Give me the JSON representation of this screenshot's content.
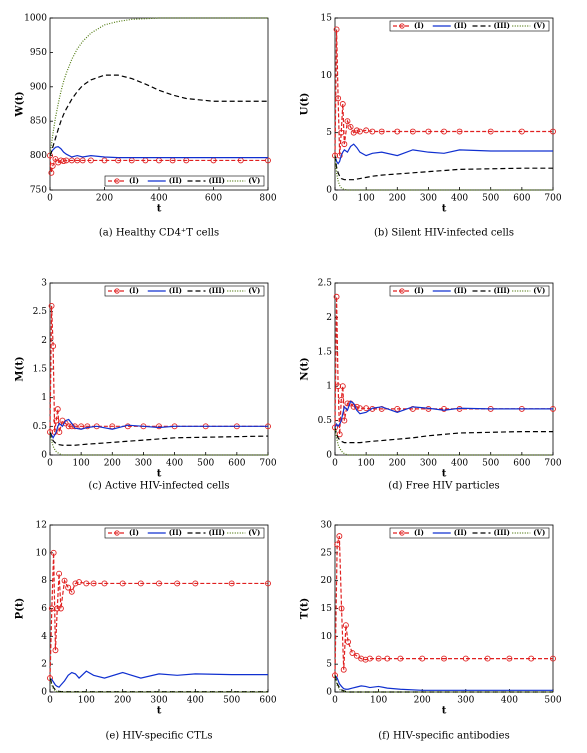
{
  "chart_data": [
    {
      "type": "line",
      "caption": "(a)  Healthy CD4⁺T cells",
      "xlabel": "t",
      "ylabel": "W(t)",
      "x": [
        0,
        5,
        10,
        20,
        30,
        40,
        50,
        60,
        80,
        100,
        120,
        150,
        200,
        250,
        300,
        350,
        400,
        450,
        500,
        600,
        700,
        800
      ],
      "xlim": [
        0,
        800
      ],
      "xticks": [
        0,
        200,
        400,
        600,
        800
      ],
      "ylim": [
        750,
        1000
      ],
      "yticks": [
        750,
        800,
        850,
        900,
        950,
        1000
      ],
      "legend": "lower",
      "series": [
        {
          "name": "(I)",
          "color": "#e02020",
          "dash": "4,2",
          "marker": "o",
          "values": [
            800,
            775,
            785,
            795,
            790,
            793,
            792,
            793,
            793,
            793,
            793,
            793,
            793,
            793,
            793,
            793,
            793,
            793,
            793,
            793,
            793,
            793
          ]
        },
        {
          "name": "(II)",
          "color": "#1030d0",
          "dash": "none",
          "values": [
            800,
            805,
            808,
            812,
            813,
            810,
            805,
            802,
            798,
            800,
            798,
            800,
            798,
            797,
            797,
            797,
            797,
            797,
            797,
            797,
            797,
            797
          ]
        },
        {
          "name": "(III)",
          "color": "#000000",
          "dash": "5,3",
          "values": [
            800,
            805,
            812,
            825,
            838,
            850,
            860,
            868,
            882,
            893,
            902,
            910,
            917,
            917,
            912,
            904,
            895,
            888,
            883,
            879,
            879,
            879
          ]
        },
        {
          "name": "(V)",
          "color": "#507a10",
          "dash": "1,1.5",
          "values": [
            800,
            815,
            830,
            855,
            875,
            893,
            908,
            920,
            940,
            955,
            966,
            978,
            990,
            995,
            998,
            999,
            1000,
            1000,
            1000,
            1000,
            1000,
            1000
          ]
        }
      ]
    },
    {
      "type": "line",
      "caption": "(b)  Silent HIV-infected cells",
      "xlabel": "t",
      "ylabel": "U(t)",
      "x": [
        0,
        5,
        10,
        15,
        20,
        25,
        30,
        40,
        50,
        60,
        70,
        80,
        100,
        120,
        150,
        200,
        250,
        300,
        350,
        400,
        500,
        600,
        700
      ],
      "xlim": [
        0,
        700
      ],
      "xticks": [
        0,
        100,
        200,
        300,
        400,
        500,
        600,
        700
      ],
      "ylim": [
        0,
        15
      ],
      "yticks": [
        0,
        5,
        10,
        15
      ],
      "legend": "upper",
      "series": [
        {
          "name": "(I)",
          "color": "#e02020",
          "dash": "4,2",
          "marker": "o",
          "values": [
            3,
            14,
            8,
            3,
            5,
            7.5,
            4,
            6,
            5.5,
            5,
            5.2,
            5.1,
            5.2,
            5.1,
            5.1,
            5.1,
            5.1,
            5.1,
            5.1,
            5.1,
            5.1,
            5.1,
            5.1
          ]
        },
        {
          "name": "(II)",
          "color": "#1030d0",
          "dash": "none",
          "values": [
            3,
            2.5,
            2.3,
            2.5,
            3,
            3.3,
            3.5,
            3.3,
            3.8,
            4,
            3.7,
            3.3,
            3,
            3.2,
            3.3,
            3,
            3.5,
            3.3,
            3.2,
            3.5,
            3.4,
            3.4,
            3.4
          ]
        },
        {
          "name": "(III)",
          "color": "#000000",
          "dash": "5,3",
          "values": [
            3,
            2,
            1.5,
            1.2,
            1,
            0.95,
            0.9,
            0.9,
            0.9,
            0.9,
            0.95,
            1,
            1.1,
            1.2,
            1.3,
            1.4,
            1.5,
            1.6,
            1.7,
            1.8,
            1.85,
            1.9,
            1.9
          ]
        },
        {
          "name": "(V)",
          "color": "#507a10",
          "dash": "1,1.5",
          "values": [
            3,
            1.5,
            0.8,
            0.4,
            0.2,
            0.1,
            0.05,
            0,
            0,
            0,
            0,
            0,
            0,
            0,
            0,
            0,
            0,
            0,
            0,
            0,
            0,
            0,
            0
          ]
        }
      ]
    },
    {
      "type": "line",
      "caption": "(c)  Active HIV-infected cells",
      "xlabel": "t",
      "ylabel": "M(t)",
      "x": [
        0,
        5,
        10,
        15,
        20,
        25,
        30,
        40,
        50,
        60,
        70,
        80,
        100,
        120,
        150,
        200,
        250,
        300,
        350,
        400,
        500,
        600,
        700
      ],
      "xlim": [
        0,
        700
      ],
      "xticks": [
        0,
        100,
        200,
        300,
        400,
        500,
        600,
        700
      ],
      "ylim": [
        0,
        3
      ],
      "yticks": [
        0,
        0.5,
        1,
        1.5,
        2,
        2.5,
        3
      ],
      "legend": "upper",
      "series": [
        {
          "name": "(I)",
          "color": "#e02020",
          "dash": "4,2",
          "marker": "o",
          "values": [
            0.4,
            2.6,
            1.9,
            0.4,
            0.6,
            0.8,
            0.4,
            0.6,
            0.55,
            0.5,
            0.5,
            0.5,
            0.5,
            0.5,
            0.5,
            0.5,
            0.5,
            0.5,
            0.5,
            0.5,
            0.5,
            0.5,
            0.5
          ]
        },
        {
          "name": "(II)",
          "color": "#1030d0",
          "dash": "none",
          "values": [
            0.4,
            0.35,
            0.3,
            0.35,
            0.4,
            0.5,
            0.55,
            0.5,
            0.6,
            0.62,
            0.55,
            0.47,
            0.45,
            0.48,
            0.5,
            0.45,
            0.52,
            0.5,
            0.48,
            0.5,
            0.5,
            0.5,
            0.5
          ]
        },
        {
          "name": "(III)",
          "color": "#000000",
          "dash": "5,3",
          "values": [
            0.4,
            0.3,
            0.25,
            0.22,
            0.2,
            0.19,
            0.18,
            0.17,
            0.17,
            0.17,
            0.17,
            0.17,
            0.18,
            0.19,
            0.2,
            0.22,
            0.24,
            0.26,
            0.28,
            0.3,
            0.31,
            0.32,
            0.33
          ]
        },
        {
          "name": "(V)",
          "color": "#507a10",
          "dash": "1,1.5",
          "values": [
            0.4,
            0.25,
            0.15,
            0.1,
            0.06,
            0.04,
            0.02,
            0,
            0,
            0,
            0,
            0,
            0,
            0,
            0,
            0,
            0,
            0,
            0,
            0,
            0,
            0,
            0
          ]
        }
      ]
    },
    {
      "type": "line",
      "caption": "(d)  Free HIV particles",
      "xlabel": "t",
      "ylabel": "N(t)",
      "x": [
        0,
        5,
        10,
        15,
        20,
        25,
        30,
        40,
        50,
        60,
        70,
        80,
        100,
        120,
        150,
        200,
        250,
        300,
        350,
        400,
        500,
        600,
        700
      ],
      "xlim": [
        0,
        700
      ],
      "xticks": [
        0,
        100,
        200,
        300,
        400,
        500,
        600,
        700
      ],
      "ylim": [
        0,
        2.5
      ],
      "yticks": [
        0,
        0.5,
        1,
        1.5,
        2,
        2.5
      ],
      "legend": "upper",
      "series": [
        {
          "name": "(I)",
          "color": "#e02020",
          "dash": "4,2",
          "marker": "o",
          "values": [
            0.4,
            2.3,
            1,
            0.3,
            0.8,
            1,
            0.5,
            0.75,
            0.75,
            0.7,
            0.7,
            0.68,
            0.68,
            0.67,
            0.67,
            0.67,
            0.67,
            0.67,
            0.67,
            0.67,
            0.67,
            0.67,
            0.67
          ]
        },
        {
          "name": "(II)",
          "color": "#1030d0",
          "dash": "none",
          "values": [
            0.4,
            0.45,
            0.42,
            0.45,
            0.5,
            0.6,
            0.7,
            0.65,
            0.78,
            0.75,
            0.65,
            0.6,
            0.62,
            0.68,
            0.7,
            0.62,
            0.7,
            0.68,
            0.65,
            0.68,
            0.67,
            0.67,
            0.67
          ]
        },
        {
          "name": "(III)",
          "color": "#000000",
          "dash": "5,3",
          "values": [
            0.4,
            0.3,
            0.25,
            0.22,
            0.2,
            0.19,
            0.18,
            0.18,
            0.18,
            0.18,
            0.18,
            0.18,
            0.19,
            0.2,
            0.21,
            0.23,
            0.25,
            0.28,
            0.3,
            0.32,
            0.33,
            0.34,
            0.34
          ]
        },
        {
          "name": "(V)",
          "color": "#507a10",
          "dash": "1,1.5",
          "values": [
            0.4,
            0.25,
            0.15,
            0.1,
            0.06,
            0.04,
            0.02,
            0,
            0,
            0,
            0,
            0,
            0,
            0,
            0,
            0,
            0,
            0,
            0,
            0,
            0,
            0,
            0
          ]
        }
      ]
    },
    {
      "type": "line",
      "caption": "(e)  HIV-specific CTLs",
      "xlabel": "t",
      "ylabel": "P(t)",
      "x": [
        0,
        5,
        10,
        15,
        20,
        25,
        30,
        40,
        50,
        60,
        70,
        80,
        100,
        120,
        150,
        200,
        250,
        300,
        350,
        400,
        500,
        600
      ],
      "xlim": [
        0,
        600
      ],
      "xticks": [
        0,
        100,
        200,
        300,
        400,
        500,
        600
      ],
      "ylim": [
        0,
        12
      ],
      "yticks": [
        0,
        2,
        4,
        6,
        8,
        10,
        12
      ],
      "legend": "upper",
      "series": [
        {
          "name": "(I)",
          "color": "#e02020",
          "dash": "4,2",
          "marker": "o",
          "values": [
            1,
            6,
            10,
            3,
            6,
            8.5,
            6,
            8,
            7.5,
            7.2,
            7.8,
            7.9,
            7.8,
            7.8,
            7.8,
            7.8,
            7.8,
            7.8,
            7.8,
            7.8,
            7.8,
            7.8
          ]
        },
        {
          "name": "(II)",
          "color": "#1030d0",
          "dash": "none",
          "values": [
            1,
            0.9,
            0.7,
            0.5,
            0.4,
            0.35,
            0.5,
            0.8,
            1.2,
            1.4,
            1.3,
            1,
            1.5,
            1.2,
            1,
            1.4,
            1,
            1.3,
            1.2,
            1.3,
            1.25,
            1.25
          ]
        },
        {
          "name": "(III)",
          "color": "#000000",
          "dash": "5,3",
          "values": [
            1,
            0.6,
            0.3,
            0.15,
            0.08,
            0.05,
            0.03,
            0.02,
            0.02,
            0.02,
            0.02,
            0.02,
            0.02,
            0.02,
            0.02,
            0.02,
            0.02,
            0.02,
            0.02,
            0.02,
            0.02,
            0.02
          ]
        },
        {
          "name": "(V)",
          "color": "#507a10",
          "dash": "1,1.5",
          "values": [
            1,
            0.5,
            0.2,
            0.08,
            0.03,
            0,
            0,
            0,
            0,
            0,
            0,
            0,
            0,
            0,
            0,
            0,
            0,
            0,
            0,
            0,
            0,
            0
          ]
        }
      ]
    },
    {
      "type": "line",
      "caption": "(f)  HIV-specific antibodies",
      "xlabel": "t",
      "ylabel": "T(t)",
      "x": [
        0,
        5,
        10,
        15,
        20,
        25,
        30,
        40,
        50,
        60,
        70,
        80,
        100,
        120,
        150,
        200,
        250,
        300,
        350,
        400,
        450,
        500
      ],
      "xlim": [
        0,
        500
      ],
      "xticks": [
        0,
        100,
        200,
        300,
        400,
        500
      ],
      "ylim": [
        0,
        30
      ],
      "yticks": [
        0,
        5,
        10,
        15,
        20,
        25,
        30
      ],
      "legend": "upper",
      "series": [
        {
          "name": "(I)",
          "color": "#e02020",
          "dash": "4,2",
          "marker": "o",
          "values": [
            3,
            26.5,
            28,
            15,
            4,
            12,
            9,
            7,
            6.5,
            6,
            5.8,
            6,
            6,
            6,
            6,
            6,
            6,
            6,
            6,
            6,
            6,
            6
          ]
        },
        {
          "name": "(II)",
          "color": "#1030d0",
          "dash": "none",
          "values": [
            3,
            2.5,
            1.5,
            1,
            0.6,
            0.5,
            0.5,
            0.7,
            0.9,
            1.1,
            1,
            0.8,
            1,
            0.7,
            0.5,
            0.3,
            0.3,
            0.3,
            0.3,
            0.3,
            0.3,
            0.3
          ]
        },
        {
          "name": "(III)",
          "color": "#000000",
          "dash": "5,3",
          "values": [
            3,
            1.5,
            0.8,
            0.4,
            0.2,
            0.1,
            0,
            0,
            0,
            0,
            0,
            0,
            0,
            0,
            0,
            0,
            0,
            0,
            0,
            0,
            0,
            0
          ]
        },
        {
          "name": "(V)",
          "color": "#507a10",
          "dash": "1,1.5",
          "values": [
            3,
            1.2,
            0.5,
            0.2,
            0.1,
            0,
            0,
            0,
            0,
            0,
            0,
            0,
            0,
            0,
            0,
            0,
            0,
            0,
            0,
            0,
            0,
            0
          ]
        }
      ]
    }
  ]
}
